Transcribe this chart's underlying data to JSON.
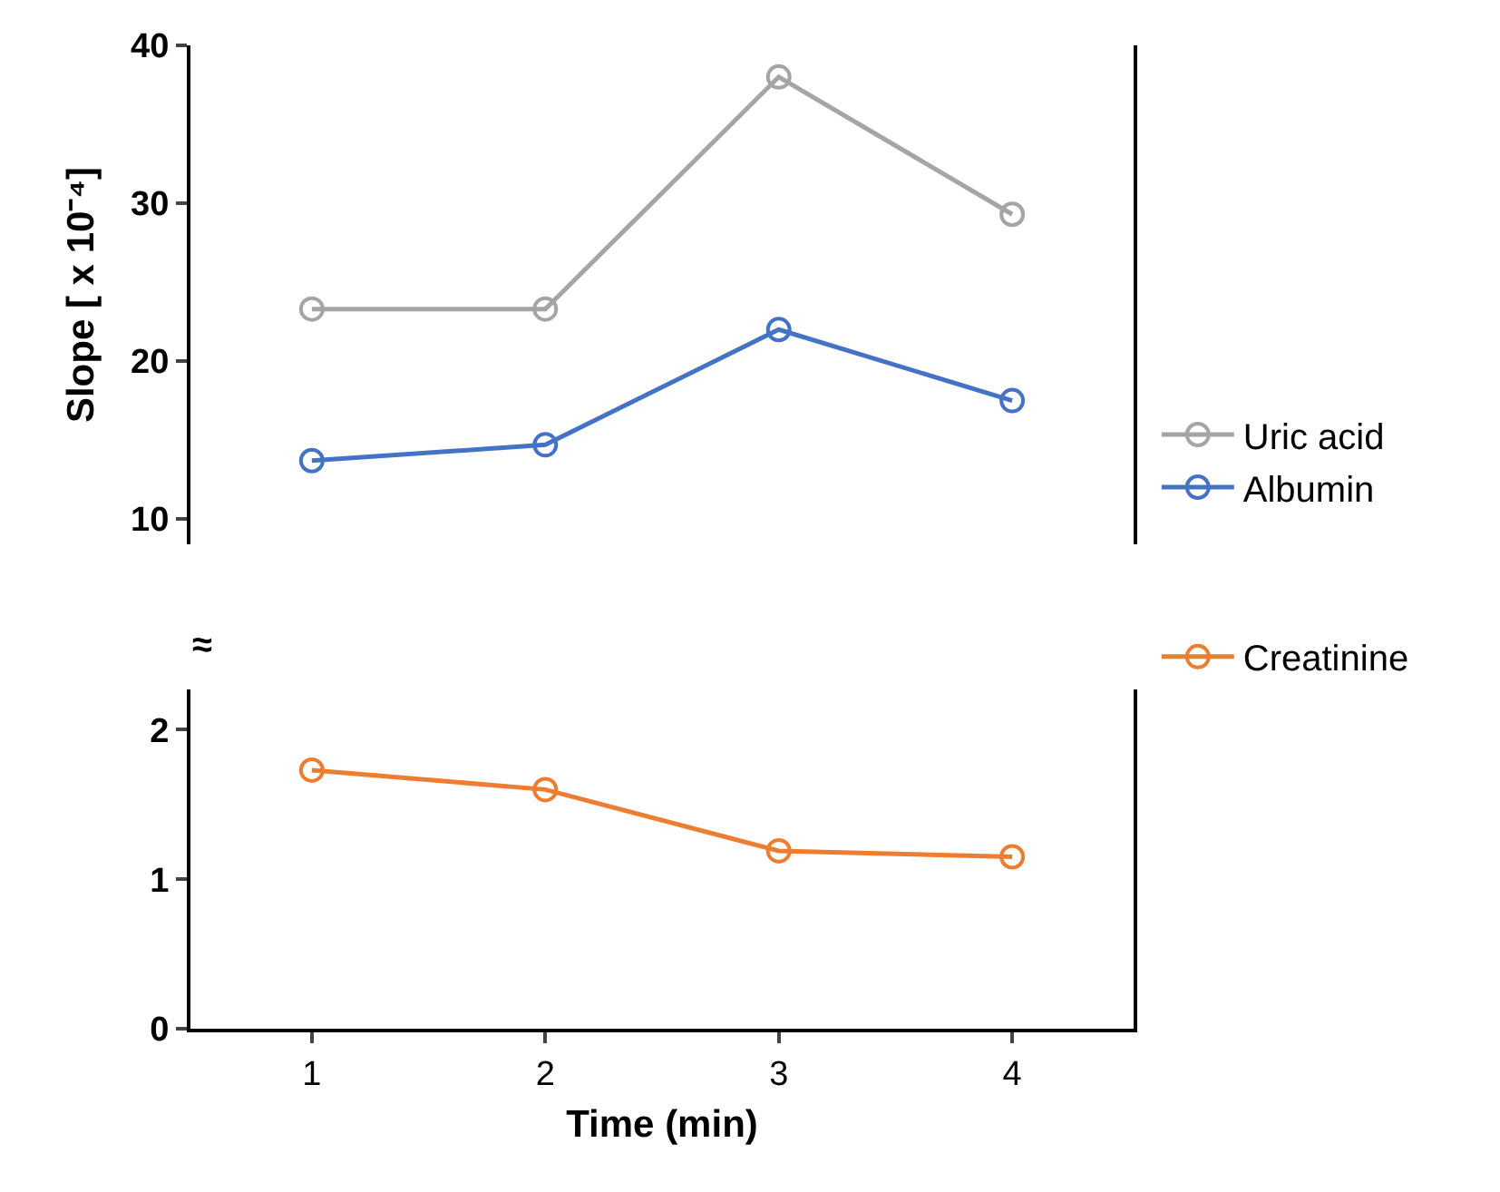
{
  "chart_data": [
    {
      "type": "line",
      "ylabel": "Slope [ x 10⁻⁴]",
      "categories": [
        "1",
        "2",
        "3",
        "4"
      ],
      "series": [
        {
          "name": "Uric acid",
          "color": "#a5a5a5",
          "values": [
            23.3,
            23.3,
            38.0,
            29.3
          ]
        },
        {
          "name": "Albumin",
          "color": "#4472c4",
          "values": [
            13.7,
            14.7,
            22.0,
            17.5
          ]
        }
      ],
      "ylim": [
        8.4,
        40
      ],
      "yticks": [
        10,
        20,
        30,
        40
      ],
      "tick_labels": "y",
      "marker": "circle",
      "legend": "right"
    },
    {
      "type": "line",
      "xlabel": "Time (min)",
      "categories": [
        "1",
        "2",
        "3",
        "4"
      ],
      "series": [
        {
          "name": "Creatinine",
          "color": "#ed7d31",
          "values": [
            1.73,
            1.6,
            1.19,
            1.15
          ]
        }
      ],
      "ylim": [
        0,
        2.27
      ],
      "yticks": [
        0,
        1,
        2
      ],
      "marker": "circle",
      "legend": "right",
      "annotations": [
        "≈"
      ]
    }
  ]
}
